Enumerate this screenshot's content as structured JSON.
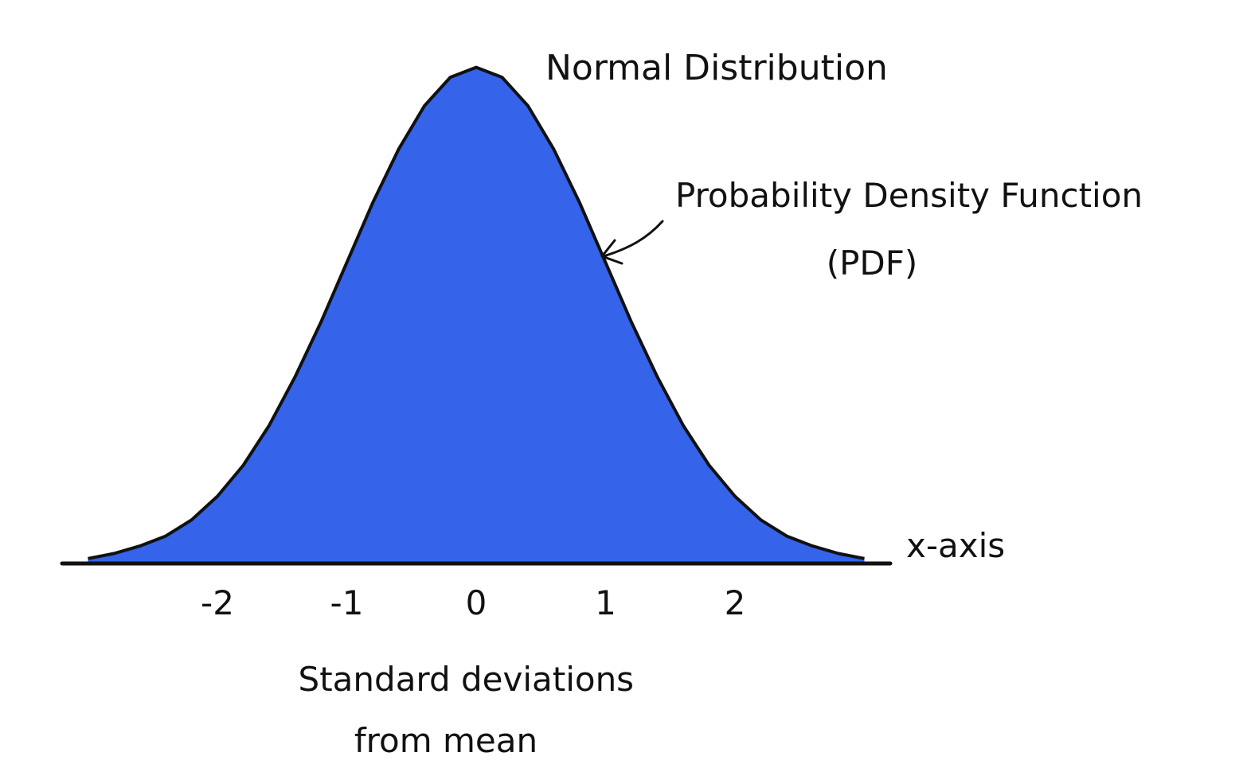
{
  "chart_data": {
    "type": "area",
    "title": "Normal Distribution",
    "xlabel": "Standard deviations\nfrom mean",
    "ylabel": "",
    "x_axis_label": "x-axis",
    "annotation": {
      "line1": "Probability Density Function",
      "line2": "(PDF)"
    },
    "xlim": [
      -3.2,
      3.2
    ],
    "ylim": [
      0,
      0.4
    ],
    "ticks": [
      {
        "value": -2,
        "label": "-2"
      },
      {
        "value": -1,
        "label": "-1"
      },
      {
        "value": 0,
        "label": "0"
      },
      {
        "value": 1,
        "label": "1"
      },
      {
        "value": 2,
        "label": "2"
      }
    ],
    "series": [
      {
        "x": [
          -3.0,
          -2.8,
          -2.6,
          -2.4,
          -2.2,
          -2.0,
          -1.8,
          -1.6,
          -1.4,
          -1.2,
          -1.0,
          -0.8,
          -0.6,
          -0.4,
          -0.2,
          0.0,
          0.2,
          0.4,
          0.6,
          0.8,
          1.0,
          1.2,
          1.4,
          1.6,
          1.8,
          2.0,
          2.2,
          2.4,
          2.6,
          2.8,
          3.0
        ],
        "y": [
          0.004,
          0.008,
          0.014,
          0.022,
          0.035,
          0.054,
          0.079,
          0.111,
          0.15,
          0.194,
          0.242,
          0.29,
          0.333,
          0.368,
          0.391,
          0.399,
          0.391,
          0.368,
          0.333,
          0.29,
          0.242,
          0.194,
          0.15,
          0.111,
          0.079,
          0.054,
          0.035,
          0.022,
          0.014,
          0.008,
          0.004
        ]
      }
    ],
    "colors": {
      "fill": "#3563ea",
      "stroke": "#111111"
    },
    "grid": false,
    "legend": "none"
  }
}
